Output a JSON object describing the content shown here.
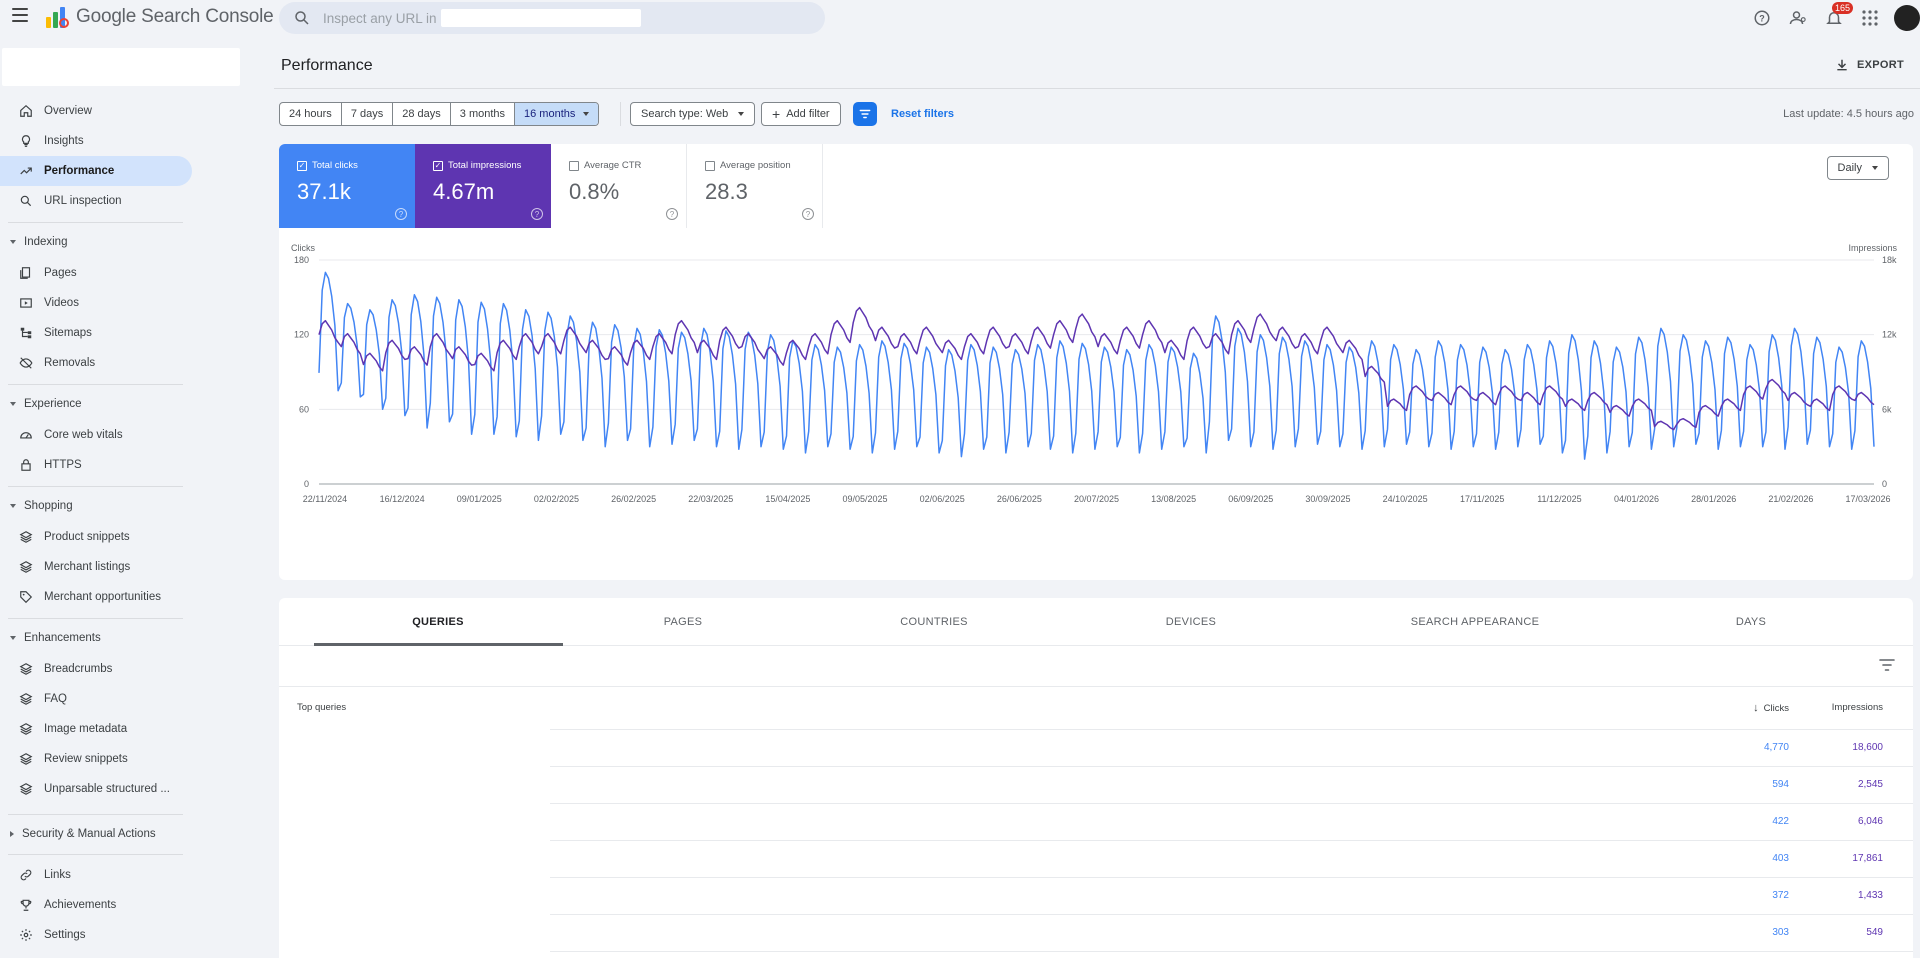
{
  "app": {
    "title": "Google Search Console"
  },
  "search": {
    "placeholder": "Inspect any URL in"
  },
  "topbar": {
    "notification_count": "165"
  },
  "sidebar": {
    "items": [
      {
        "label": "Overview",
        "icon": "home-icon"
      },
      {
        "label": "Insights",
        "icon": "lightbulb-icon"
      },
      {
        "label": "Performance",
        "icon": "trending-up-icon",
        "active": true
      },
      {
        "label": "URL inspection",
        "icon": "search-icon"
      }
    ],
    "sections": [
      {
        "title": "Indexing",
        "items": [
          {
            "label": "Pages",
            "icon": "pages-icon"
          },
          {
            "label": "Videos",
            "icon": "video-icon"
          },
          {
            "label": "Sitemaps",
            "icon": "sitemap-icon"
          },
          {
            "label": "Removals",
            "icon": "removals-icon"
          }
        ]
      },
      {
        "title": "Experience",
        "items": [
          {
            "label": "Core web vitals",
            "icon": "gauge-icon"
          },
          {
            "label": "HTTPS",
            "icon": "lock-icon"
          }
        ]
      },
      {
        "title": "Shopping",
        "items": [
          {
            "label": "Product snippets",
            "icon": "layers-icon"
          },
          {
            "label": "Merchant listings",
            "icon": "layers-icon"
          },
          {
            "label": "Merchant opportunities",
            "icon": "tag-icon"
          }
        ]
      },
      {
        "title": "Enhancements",
        "items": [
          {
            "label": "Breadcrumbs",
            "icon": "layers-icon"
          },
          {
            "label": "FAQ",
            "icon": "layers-icon"
          },
          {
            "label": "Image metadata",
            "icon": "layers-icon"
          },
          {
            "label": "Review snippets",
            "icon": "layers-icon"
          },
          {
            "label": "Unparsable structured ...",
            "icon": "layers-icon"
          }
        ]
      },
      {
        "title": "Security & Manual Actions",
        "collapsed": true,
        "items": []
      }
    ],
    "footer": [
      {
        "label": "Links",
        "icon": "link-icon"
      },
      {
        "label": "Achievements",
        "icon": "trophy-icon"
      },
      {
        "label": "Settings",
        "icon": "settings-icon"
      }
    ]
  },
  "main": {
    "title": "Performance",
    "export_label": "EXPORT",
    "ranges": [
      "24 hours",
      "7 days",
      "28 days",
      "3 months",
      "16 months"
    ],
    "active_range": "16 months",
    "search_type": "Search type: Web",
    "add_filter": "Add filter",
    "reset_filters": "Reset filters",
    "last_update": "Last update: 4.5 hours ago",
    "granularity": "Daily"
  },
  "metrics": {
    "clicks": {
      "label": "Total clicks",
      "value": "37.1k",
      "color": "#4285f4",
      "checked": true
    },
    "impressions": {
      "label": "Total impressions",
      "value": "4.67m",
      "color": "#5e35b1",
      "checked": true
    },
    "ctr": {
      "label": "Average CTR",
      "value": "0.8%",
      "checked": false
    },
    "position": {
      "label": "Average position",
      "value": "28.3",
      "checked": false
    }
  },
  "chart_data": {
    "type": "line",
    "left_axis_label": "Clicks",
    "right_axis_label": "Impressions",
    "y_ticks_left": [
      "180",
      "120",
      "60",
      "0"
    ],
    "y_ticks_right": [
      "18k",
      "12k",
      "6k",
      "0"
    ],
    "ylim_left": [
      0,
      180
    ],
    "ylim_right": [
      0,
      18000
    ],
    "x_tick_labels": [
      "22/11/2024",
      "16/12/2024",
      "09/01/2025",
      "02/02/2025",
      "26/02/2025",
      "22/03/2025",
      "15/04/2025",
      "09/05/2025",
      "02/06/2025",
      "26/06/2025",
      "20/07/2025",
      "13/08/2025",
      "06/09/2025",
      "30/09/2025",
      "24/10/2025",
      "17/11/2025",
      "11/12/2025",
      "04/01/2026",
      "28/01/2026",
      "21/02/2026",
      "17/03/2026"
    ],
    "series": [
      {
        "name": "Clicks",
        "axis": "left",
        "color": "#4285f4",
        "weekly_peaks": [
          170,
          145,
          140,
          148,
          152,
          150,
          148,
          146,
          145,
          140,
          138,
          135,
          130,
          128,
          125,
          124,
          122,
          125,
          123,
          122,
          120,
          115,
          112,
          110,
          112,
          115,
          113,
          110,
          108,
          112,
          110,
          108,
          112,
          115,
          113,
          110,
          108,
          112,
          110,
          105,
          135,
          125,
          120,
          118,
          115,
          112,
          110,
          115,
          112,
          108,
          115,
          112,
          110,
          108,
          112,
          115,
          120,
          115,
          110,
          118,
          125,
          120,
          115,
          118,
          112,
          120,
          125,
          118,
          110,
          115
        ],
        "weekly_troughs": [
          75,
          70,
          60,
          55,
          45,
          50,
          40,
          40,
          38,
          35,
          40,
          35,
          30,
          35,
          30,
          32,
          35,
          30,
          28,
          30,
          28,
          25,
          30,
          28,
          25,
          28,
          30,
          25,
          22,
          28,
          25,
          30,
          28,
          25,
          28,
          30,
          25,
          28,
          30,
          25,
          35,
          30,
          28,
          30,
          32,
          30,
          28,
          30,
          32,
          30,
          28,
          30,
          28,
          30,
          32,
          25,
          20,
          25,
          30,
          28,
          30,
          32,
          28,
          30,
          30,
          28,
          32,
          30,
          28,
          30
        ]
      },
      {
        "name": "Impressions",
        "axis": "right",
        "color": "#5e35b1",
        "weekly_values": [
          12500,
          11500,
          10000,
          11000,
          10500,
          11500,
          10500,
          10000,
          11000,
          11500,
          11500,
          12000,
          11000,
          10500,
          11000,
          11500,
          12500,
          11000,
          12000,
          11500,
          10500,
          11000,
          11500,
          12500,
          13500,
          12000,
          11500,
          12000,
          11000,
          11500,
          12000,
          11500,
          12000,
          12500,
          13000,
          11500,
          12000,
          12500,
          11000,
          12000,
          11500,
          12500,
          13000,
          12000,
          11500,
          12000,
          11000,
          9000,
          6500,
          7500,
          7000,
          7500,
          7000,
          7500,
          7000,
          7500,
          6500,
          7000,
          6000,
          6500,
          4800,
          5000,
          6000,
          6500,
          7500,
          8000,
          7000,
          6500,
          7500,
          7000
        ]
      }
    ]
  },
  "table": {
    "tabs": [
      "QUERIES",
      "PAGES",
      "COUNTRIES",
      "DEVICES",
      "SEARCH APPEARANCE",
      "DAYS"
    ],
    "active_tab": "QUERIES",
    "col_query": "Top queries",
    "col_clicks": "Clicks",
    "col_impressions": "Impressions",
    "rows": [
      {
        "clicks": "4,770",
        "impressions": "18,600"
      },
      {
        "clicks": "594",
        "impressions": "2,545"
      },
      {
        "clicks": "422",
        "impressions": "6,046"
      },
      {
        "clicks": "403",
        "impressions": "17,861"
      },
      {
        "clicks": "372",
        "impressions": "1,433"
      },
      {
        "clicks": "303",
        "impressions": "549"
      }
    ]
  }
}
